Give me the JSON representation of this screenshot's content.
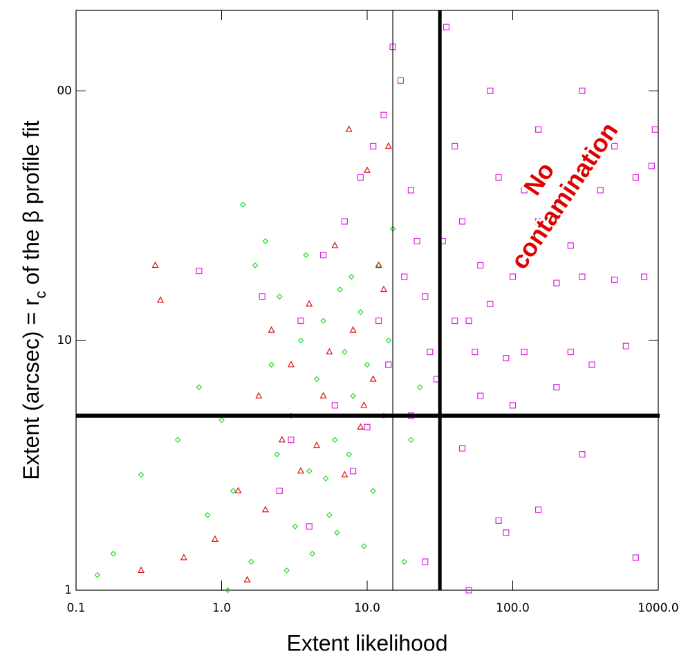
{
  "chart_data": {
    "type": "scatter",
    "xlabel": "Extent likelihood",
    "ylabel": [
      "Extent (arcsec) = r",
      "c",
      " of the β profile fit"
    ],
    "annotation": [
      "No",
      "contamination"
    ],
    "annotation_color": "#e00000",
    "xlog": true,
    "ylog": true,
    "xlim": [
      0.1,
      1000
    ],
    "ylim": [
      1,
      210
    ],
    "xticks": [
      0.1,
      {
        "value": 1,
        "label": "1.0"
      },
      {
        "value": 10,
        "label": "10.0"
      },
      {
        "value": 100,
        "label": "100.0"
      },
      {
        "value": 1000,
        "label": "1000.0"
      }
    ],
    "yticks": [
      1,
      10,
      {
        "value": 100,
        "label": "00"
      }
    ],
    "vlines": [
      15,
      31.6
    ],
    "hlines": [
      5
    ],
    "series": [
      {
        "marker": "square",
        "color": "#e020e0",
        "x": [
          0.7,
          1.9,
          3.5,
          5,
          7,
          9,
          11,
          13,
          15,
          17,
          20,
          22,
          25,
          27,
          30,
          14,
          12,
          18,
          35,
          40,
          45,
          50,
          55,
          60,
          70,
          80,
          90,
          100,
          120,
          150,
          200,
          250,
          300,
          350,
          400,
          500,
          600,
          700,
          800,
          900,
          950,
          60,
          100,
          200,
          45,
          80,
          150,
          300,
          700,
          90,
          50,
          25,
          6,
          3,
          8,
          4,
          2.5,
          10,
          20,
          300,
          150,
          500,
          40,
          33,
          70,
          120,
          250
        ],
        "y": [
          19,
          15,
          12,
          22,
          30,
          45,
          60,
          80,
          150,
          110,
          40,
          25,
          15,
          9,
          7,
          8,
          12,
          18,
          180,
          60,
          30,
          12,
          9,
          20,
          100,
          45,
          8.5,
          18,
          9,
          30,
          17,
          9,
          18,
          8,
          40,
          17.5,
          9.5,
          45,
          18,
          50,
          70,
          6,
          5.5,
          6.5,
          3.7,
          1.9,
          2.1,
          3.5,
          1.35,
          1.7,
          1,
          1.3,
          5.5,
          4,
          3,
          1.8,
          2.5,
          4.5,
          5,
          100,
          70,
          60,
          12,
          25,
          14,
          40,
          24
        ]
      },
      {
        "marker": "diamond",
        "color": "#22dd22",
        "x": [
          0.14,
          0.18,
          0.28,
          0.5,
          0.7,
          1,
          0.8,
          1.2,
          1.4,
          1.7,
          2,
          2.2,
          2.5,
          3,
          3.5,
          4,
          4.5,
          5,
          5.5,
          6,
          6.5,
          7,
          7.5,
          8,
          9,
          10,
          11,
          12,
          13,
          14,
          15,
          18,
          20,
          23,
          3.2,
          2.8,
          4.2,
          5.2,
          6.2,
          1.6,
          2.4,
          3.8,
          9.5,
          1.1,
          7.8
        ],
        "y": [
          1.15,
          1.4,
          2.9,
          4,
          6.5,
          4.8,
          2,
          2.5,
          35,
          20,
          25,
          8,
          15,
          5,
          10,
          3,
          7,
          12,
          2,
          4,
          16,
          9,
          3.5,
          6,
          13,
          8,
          2.5,
          20,
          5,
          10,
          28,
          1.3,
          4,
          6.5,
          1.8,
          1.2,
          1.4,
          2.8,
          1.7,
          1.3,
          3.5,
          22,
          1.5,
          1,
          18
        ]
      },
      {
        "marker": "triangle",
        "color": "#dd1111",
        "x": [
          0.35,
          0.38,
          0.28,
          0.55,
          0.9,
          1.3,
          1.8,
          2.2,
          2.6,
          3,
          3.5,
          4,
          5,
          5.5,
          6,
          7,
          8,
          9,
          10,
          11,
          12,
          13,
          14,
          7.5,
          1.5,
          4.5,
          2,
          9.5
        ],
        "y": [
          20,
          14.5,
          1.2,
          1.35,
          1.6,
          2.5,
          6,
          11,
          4,
          8,
          3,
          14,
          6,
          9,
          24,
          2.9,
          11,
          4.5,
          48,
          7,
          20,
          16,
          60,
          70,
          1.1,
          3.8,
          2.1,
          5.5
        ]
      }
    ]
  }
}
